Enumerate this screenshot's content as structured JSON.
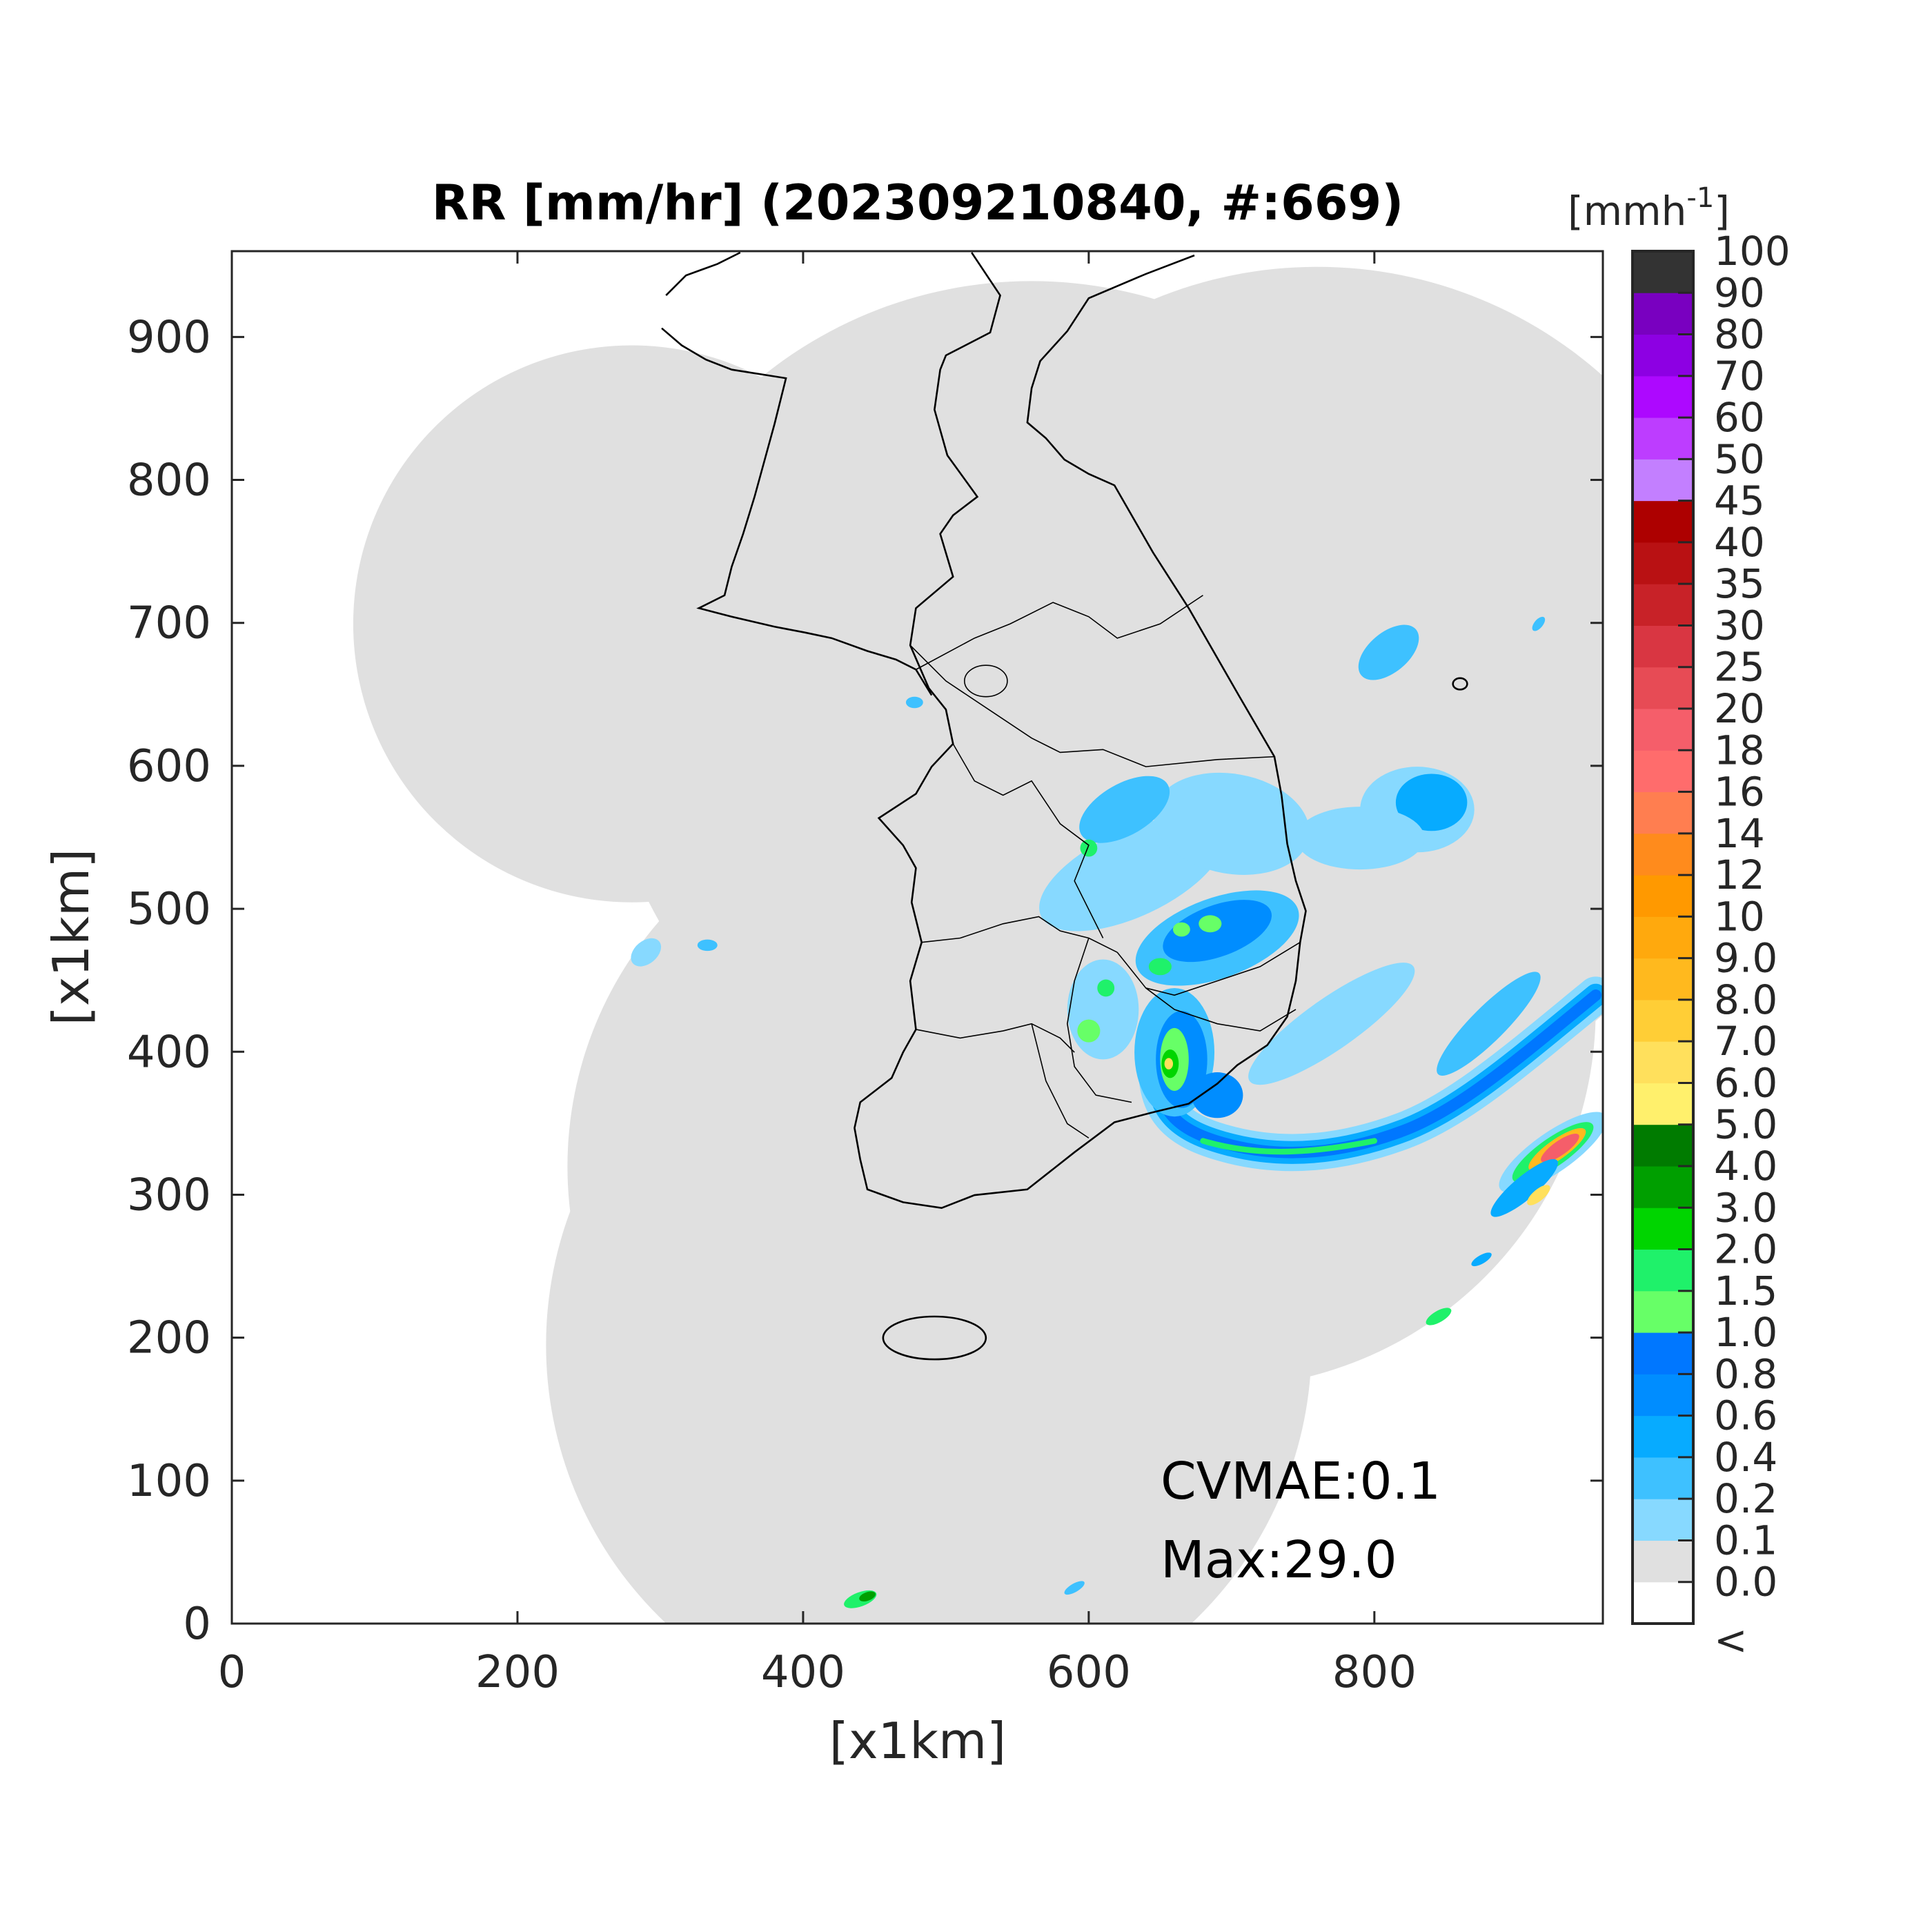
{
  "chart_data": {
    "type": "heatmap",
    "title": "RR [mm/hr] (202309210840, #:669)",
    "xlabel": "[x1km]",
    "ylabel": "[x1km]",
    "xlim": [
      0,
      960
    ],
    "ylim": [
      0,
      960
    ],
    "xticks": [
      "0",
      "200",
      "400",
      "600",
      "800"
    ],
    "xtick_values": [
      0,
      200,
      400,
      600,
      800
    ],
    "yticks": [
      "0",
      "100",
      "200",
      "300",
      "400",
      "500",
      "600",
      "700",
      "800",
      "900"
    ],
    "ytick_values": [
      0,
      100,
      200,
      300,
      400,
      500,
      600,
      700,
      800,
      900
    ],
    "grid": false,
    "annotations": [
      "CVMAE:0.1",
      "Max:29.0"
    ],
    "no_coverage_color": "#ffffff",
    "coverage_color": "#e0e0e0",
    "coastline_color": "#000000",
    "colorbar": {
      "unit_label": "[mmh",
      "unit_exponent": "-1",
      "unit_close": "]",
      "below_label": "<",
      "tick_labels": [
        "0.0",
        "0.1",
        "0.2",
        "0.4",
        "0.6",
        "0.8",
        "1.0",
        "1.5",
        "2.0",
        "3.0",
        "4.0",
        "5.0",
        "6.0",
        "7.0",
        "8.0",
        "9.0",
        "10",
        "12",
        "14",
        "16",
        "18",
        "20",
        "25",
        "30",
        "35",
        "40",
        "45",
        "50",
        "60",
        "70",
        "80",
        "90",
        "100"
      ],
      "colors": [
        "#ffffff",
        "#e0e0e0",
        "#87d9ff",
        "#3ec1ff",
        "#07abff",
        "#008dff",
        "#0077ff",
        "#67ff67",
        "#1ff16a",
        "#00d500",
        "#009f00",
        "#007b00",
        "#fff06c",
        "#ffe05c",
        "#ffce36",
        "#ffb91e",
        "#ffa90d",
        "#ff9900",
        "#ff8b1c",
        "#ff7e50",
        "#ff6c6c",
        "#f55e6a",
        "#e74b55",
        "#d93642",
        "#c82228",
        "#b91113",
        "#ad0000",
        "#c37fff",
        "#bd3dff",
        "#ad08ff",
        "#8d00e3",
        "#7900c0",
        "#333333"
      ]
    }
  }
}
